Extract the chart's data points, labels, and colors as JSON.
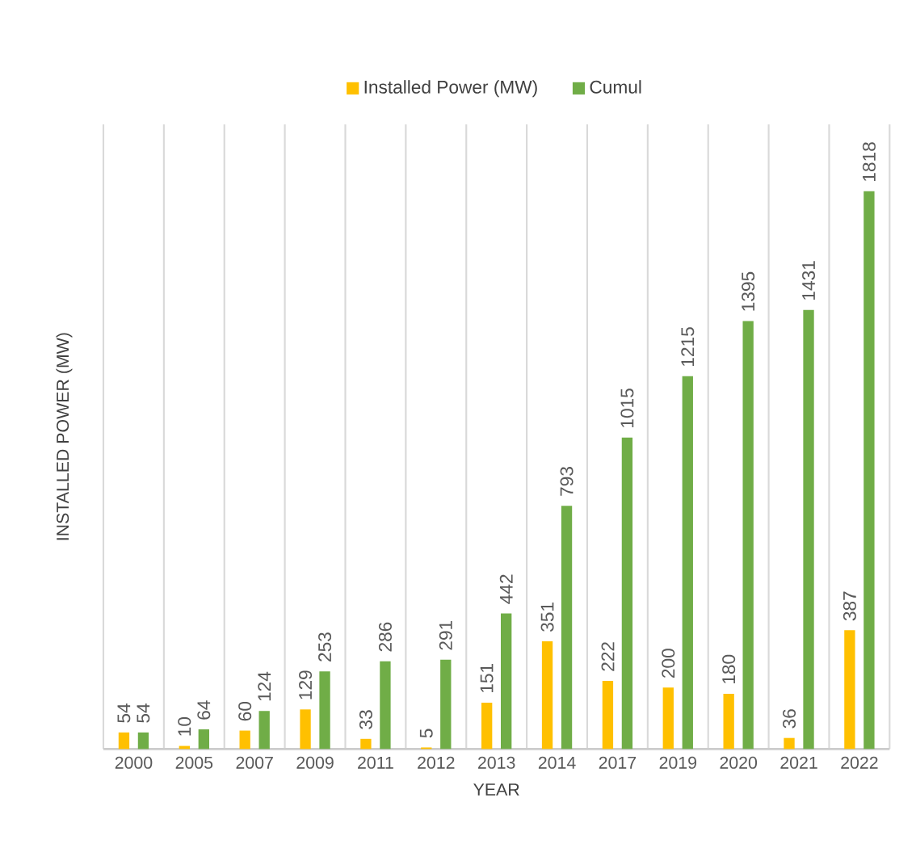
{
  "chart_data": {
    "type": "bar",
    "xlabel": "YEAR",
    "ylabel": "INSTALLED POWER (MW)",
    "categories": [
      "2000",
      "2005",
      "2007",
      "2009",
      "2011",
      "2012",
      "2013",
      "2014",
      "2017",
      "2019",
      "2020",
      "2021",
      "2022"
    ],
    "series": [
      {
        "name": "Installed Power (MW)",
        "color": "#ffc000",
        "values": [
          54,
          10,
          60,
          129,
          33,
          5,
          151,
          351,
          222,
          200,
          180,
          36,
          387
        ]
      },
      {
        "name": "Cumul",
        "color": "#70ad47",
        "values": [
          54,
          64,
          124,
          253,
          286,
          291,
          442,
          793,
          1015,
          1215,
          1395,
          1431,
          1818
        ]
      }
    ],
    "data_labels": true,
    "legend": "top",
    "grid": "x"
  }
}
